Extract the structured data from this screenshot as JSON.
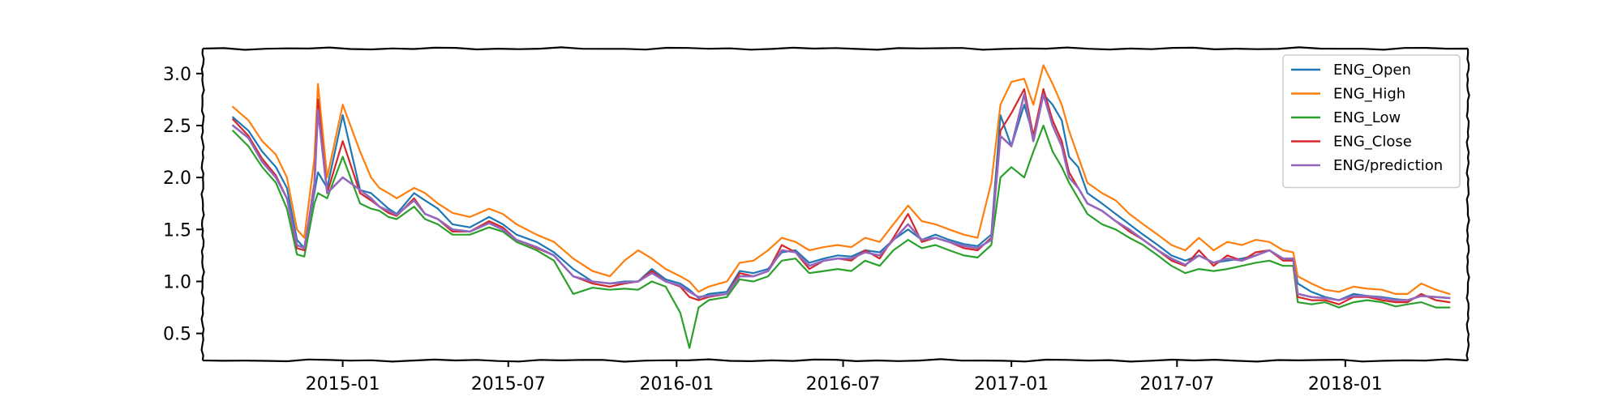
{
  "chart_data": {
    "type": "line",
    "title": "",
    "xlabel": "",
    "ylabel": "",
    "xlim": [
      "2014-08-01",
      "2018-05-15"
    ],
    "ylim": [
      0.24,
      3.24
    ],
    "x_ticks": [
      "2015-01",
      "2015-07",
      "2016-01",
      "2016-07",
      "2017-01",
      "2017-07",
      "2018-01"
    ],
    "y_ticks": [
      0.5,
      1.0,
      1.5,
      2.0,
      2.5,
      3.0
    ],
    "grid": false,
    "legend_position": "top-right",
    "series": [
      {
        "name": "ENG_Open",
        "color": "#1f77b4"
      },
      {
        "name": "ENG_High",
        "color": "#ff7f0e"
      },
      {
        "name": "ENG_Low",
        "color": "#2ca02c"
      },
      {
        "name": "ENG_Close",
        "color": "#d62728"
      },
      {
        "name": "ENG/prediction",
        "color": "#9467bd"
      }
    ],
    "x": [
      "2014-09-03",
      "2014-09-20",
      "2014-10-05",
      "2014-10-20",
      "2014-11-01",
      "2014-11-12",
      "2014-11-20",
      "2014-12-01",
      "2014-12-05",
      "2014-12-15",
      "2015-01-01",
      "2015-01-20",
      "2015-02-01",
      "2015-02-10",
      "2015-02-20",
      "2015-03-01",
      "2015-03-20",
      "2015-04-01",
      "2015-04-15",
      "2015-05-01",
      "2015-05-20",
      "2015-06-10",
      "2015-06-25",
      "2015-07-10",
      "2015-08-01",
      "2015-08-20",
      "2015-09-10",
      "2015-10-01",
      "2015-10-20",
      "2015-11-05",
      "2015-11-20",
      "2015-12-05",
      "2015-12-20",
      "2016-01-05",
      "2016-01-15",
      "2016-01-25",
      "2016-02-05",
      "2016-02-25",
      "2016-03-10",
      "2016-03-25",
      "2016-04-10",
      "2016-04-25",
      "2016-05-10",
      "2016-05-25",
      "2016-06-10",
      "2016-06-25",
      "2016-07-10",
      "2016-07-25",
      "2016-08-10",
      "2016-08-25",
      "2016-09-10",
      "2016-09-25",
      "2016-10-10",
      "2016-10-25",
      "2016-11-10",
      "2016-11-25",
      "2016-12-10",
      "2016-12-20",
      "2017-01-01",
      "2017-01-15",
      "2017-01-25",
      "2017-02-05",
      "2017-02-15",
      "2017-02-25",
      "2017-03-05",
      "2017-03-15",
      "2017-03-25",
      "2017-04-10",
      "2017-04-25",
      "2017-05-10",
      "2017-05-25",
      "2017-06-10",
      "2017-06-25",
      "2017-07-10",
      "2017-07-25",
      "2017-08-10",
      "2017-08-25",
      "2017-09-10",
      "2017-09-25",
      "2017-10-10",
      "2017-10-25",
      "2017-11-05",
      "2017-11-10",
      "2017-11-25",
      "2017-12-10",
      "2017-12-25",
      "2018-01-10",
      "2018-01-25",
      "2018-02-10",
      "2018-02-25",
      "2018-03-10",
      "2018-03-25",
      "2018-04-10",
      "2018-04-25"
    ],
    "open": [
      2.58,
      2.45,
      2.25,
      2.1,
      1.9,
      1.4,
      1.32,
      1.85,
      2.05,
      1.9,
      2.6,
      1.88,
      1.85,
      1.78,
      1.7,
      1.65,
      1.85,
      1.78,
      1.7,
      1.55,
      1.52,
      1.62,
      1.55,
      1.45,
      1.38,
      1.28,
      1.12,
      1.0,
      0.98,
      1.0,
      1.0,
      1.12,
      1.02,
      0.98,
      0.92,
      0.84,
      0.88,
      0.9,
      1.1,
      1.08,
      1.12,
      1.28,
      1.3,
      1.18,
      1.22,
      1.25,
      1.24,
      1.3,
      1.28,
      1.4,
      1.5,
      1.4,
      1.45,
      1.4,
      1.36,
      1.34,
      1.45,
      2.6,
      2.3,
      2.7,
      2.4,
      2.8,
      2.7,
      2.55,
      2.2,
      2.1,
      1.85,
      1.75,
      1.65,
      1.55,
      1.45,
      1.35,
      1.25,
      1.2,
      1.25,
      1.18,
      1.2,
      1.22,
      1.25,
      1.3,
      1.22,
      1.2,
      0.98,
      0.9,
      0.85,
      0.82,
      0.88,
      0.86,
      0.85,
      0.83,
      0.82,
      0.86,
      0.85,
      0.84
    ],
    "high": [
      2.68,
      2.55,
      2.35,
      2.22,
      2.0,
      1.5,
      1.42,
      2.18,
      2.9,
      2.0,
      2.7,
      2.25,
      2.0,
      1.9,
      1.85,
      1.8,
      1.9,
      1.85,
      1.75,
      1.66,
      1.62,
      1.7,
      1.65,
      1.55,
      1.45,
      1.38,
      1.22,
      1.1,
      1.05,
      1.2,
      1.3,
      1.22,
      1.12,
      1.05,
      1.0,
      0.9,
      0.95,
      1.0,
      1.18,
      1.2,
      1.3,
      1.42,
      1.38,
      1.3,
      1.33,
      1.35,
      1.33,
      1.42,
      1.38,
      1.55,
      1.73,
      1.58,
      1.55,
      1.5,
      1.45,
      1.42,
      1.95,
      2.7,
      2.92,
      2.95,
      2.7,
      3.08,
      2.9,
      2.7,
      2.45,
      2.2,
      1.95,
      1.85,
      1.78,
      1.65,
      1.55,
      1.45,
      1.35,
      1.3,
      1.42,
      1.3,
      1.38,
      1.35,
      1.4,
      1.38,
      1.3,
      1.28,
      1.05,
      0.98,
      0.92,
      0.9,
      0.95,
      0.93,
      0.92,
      0.88,
      0.88,
      0.98,
      0.92,
      0.88
    ],
    "low": [
      2.45,
      2.3,
      2.1,
      1.95,
      1.7,
      1.26,
      1.24,
      1.75,
      1.85,
      1.8,
      2.2,
      1.75,
      1.7,
      1.68,
      1.62,
      1.6,
      1.72,
      1.6,
      1.55,
      1.45,
      1.45,
      1.52,
      1.48,
      1.38,
      1.3,
      1.2,
      0.88,
      0.94,
      0.92,
      0.93,
      0.92,
      1.0,
      0.95,
      0.7,
      0.36,
      0.75,
      0.82,
      0.85,
      1.02,
      1.0,
      1.05,
      1.2,
      1.22,
      1.08,
      1.1,
      1.12,
      1.1,
      1.2,
      1.15,
      1.3,
      1.4,
      1.32,
      1.35,
      1.3,
      1.25,
      1.23,
      1.35,
      2.0,
      2.1,
      2.0,
      2.25,
      2.5,
      2.25,
      2.1,
      1.95,
      1.8,
      1.65,
      1.55,
      1.5,
      1.42,
      1.35,
      1.25,
      1.15,
      1.08,
      1.12,
      1.1,
      1.12,
      1.15,
      1.18,
      1.2,
      1.15,
      1.15,
      0.8,
      0.78,
      0.8,
      0.75,
      0.8,
      0.82,
      0.8,
      0.76,
      0.78,
      0.8,
      0.75,
      0.75
    ],
    "close": [
      2.56,
      2.4,
      2.18,
      2.02,
      1.8,
      1.32,
      1.3,
      1.95,
      2.75,
      1.85,
      2.35,
      1.85,
      1.78,
      1.72,
      1.66,
      1.63,
      1.8,
      1.65,
      1.6,
      1.48,
      1.48,
      1.58,
      1.52,
      1.4,
      1.32,
      1.25,
      1.05,
      0.98,
      0.95,
      0.98,
      1.0,
      1.1,
      1.0,
      0.95,
      0.85,
      0.82,
      0.85,
      0.88,
      1.08,
      1.05,
      1.1,
      1.35,
      1.28,
      1.12,
      1.2,
      1.22,
      1.2,
      1.3,
      1.22,
      1.42,
      1.65,
      1.38,
      1.42,
      1.38,
      1.32,
      1.3,
      1.42,
      2.45,
      2.62,
      2.85,
      2.4,
      2.85,
      2.55,
      2.35,
      2.05,
      1.9,
      1.75,
      1.68,
      1.58,
      1.48,
      1.4,
      1.3,
      1.2,
      1.15,
      1.3,
      1.15,
      1.25,
      1.2,
      1.28,
      1.3,
      1.2,
      1.2,
      0.85,
      0.82,
      0.82,
      0.78,
      0.85,
      0.85,
      0.82,
      0.8,
      0.8,
      0.88,
      0.82,
      0.8
    ],
    "prediction": [
      2.5,
      2.38,
      2.15,
      2.0,
      1.8,
      1.35,
      1.32,
      1.9,
      2.65,
      1.85,
      2.0,
      1.88,
      1.8,
      1.72,
      1.68,
      1.64,
      1.78,
      1.65,
      1.6,
      1.5,
      1.48,
      1.56,
      1.5,
      1.4,
      1.33,
      1.25,
      1.05,
      1.0,
      0.98,
      0.99,
      1.0,
      1.08,
      1.0,
      0.96,
      0.9,
      0.85,
      0.86,
      0.88,
      1.05,
      1.05,
      1.1,
      1.3,
      1.28,
      1.15,
      1.2,
      1.22,
      1.22,
      1.28,
      1.25,
      1.4,
      1.55,
      1.4,
      1.42,
      1.38,
      1.34,
      1.32,
      1.4,
      2.4,
      2.3,
      2.8,
      2.35,
      2.8,
      2.5,
      2.3,
      2.0,
      1.9,
      1.75,
      1.68,
      1.58,
      1.5,
      1.4,
      1.3,
      1.22,
      1.16,
      1.25,
      1.18,
      1.22,
      1.2,
      1.25,
      1.3,
      1.22,
      1.22,
      0.88,
      0.85,
      0.84,
      0.82,
      0.86,
      0.86,
      0.84,
      0.82,
      0.82,
      0.86,
      0.85,
      0.84
    ]
  }
}
